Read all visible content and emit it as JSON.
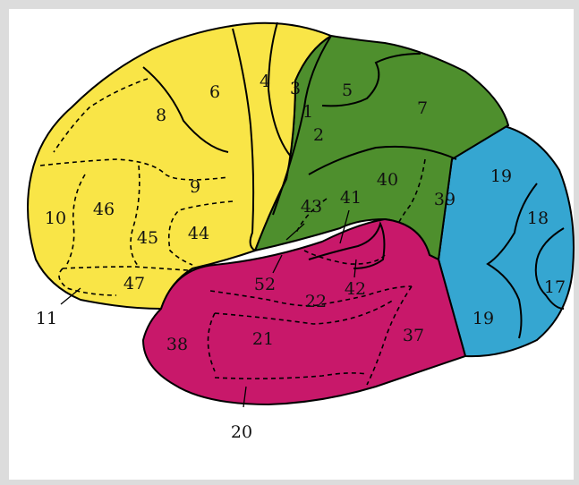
{
  "colors": {
    "frontal": "#f9e547",
    "parietal": "#4e8f2d",
    "temporal": "#c8186a",
    "occipital": "#35a6d1",
    "outline": "#000000"
  },
  "labels": {
    "a1": "1",
    "a2": "2",
    "a3": "3",
    "a4": "4",
    "a5": "5",
    "a6": "6",
    "a7": "7",
    "a8": "8",
    "a9": "9",
    "a10": "10",
    "a11": "11",
    "a17": "17",
    "a18": "18",
    "a19_upper": "19",
    "a19_lower": "19",
    "a20": "20",
    "a21": "21",
    "a22": "22",
    "a37": "37",
    "a38": "38",
    "a39": "39",
    "a40": "40",
    "a41": "41",
    "a42": "42",
    "a43": "43",
    "a44": "44",
    "a45": "45",
    "a46": "46",
    "a47": "47",
    "a52": "52"
  }
}
